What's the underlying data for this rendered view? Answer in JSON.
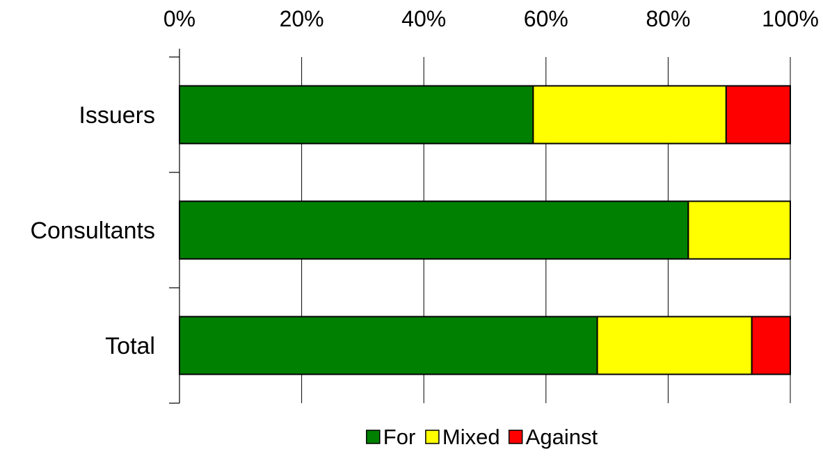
{
  "chart_data": {
    "type": "bar",
    "orientation": "horizontal",
    "stacked": true,
    "percent_stacked": true,
    "categories": [
      "Issuers",
      "Consultants",
      "Total"
    ],
    "series": [
      {
        "name": "For",
        "color": "#008000",
        "values": [
          57.9,
          83.3,
          68.4
        ]
      },
      {
        "name": "Mixed",
        "color": "#FFFF00",
        "values": [
          31.6,
          16.7,
          25.3
        ]
      },
      {
        "name": "Against",
        "color": "#FF0000",
        "values": [
          10.5,
          0,
          6.3
        ]
      }
    ],
    "xlim": [
      0,
      100
    ],
    "x_ticks": [
      0,
      20,
      40,
      60,
      80,
      100
    ],
    "x_tick_labels": [
      "0%",
      "20%",
      "40%",
      "60%",
      "80%",
      "100%"
    ],
    "x_axis_position": "top",
    "grid": "vertical",
    "legend_position": "bottom",
    "title": "",
    "xlabel": "",
    "ylabel": ""
  }
}
